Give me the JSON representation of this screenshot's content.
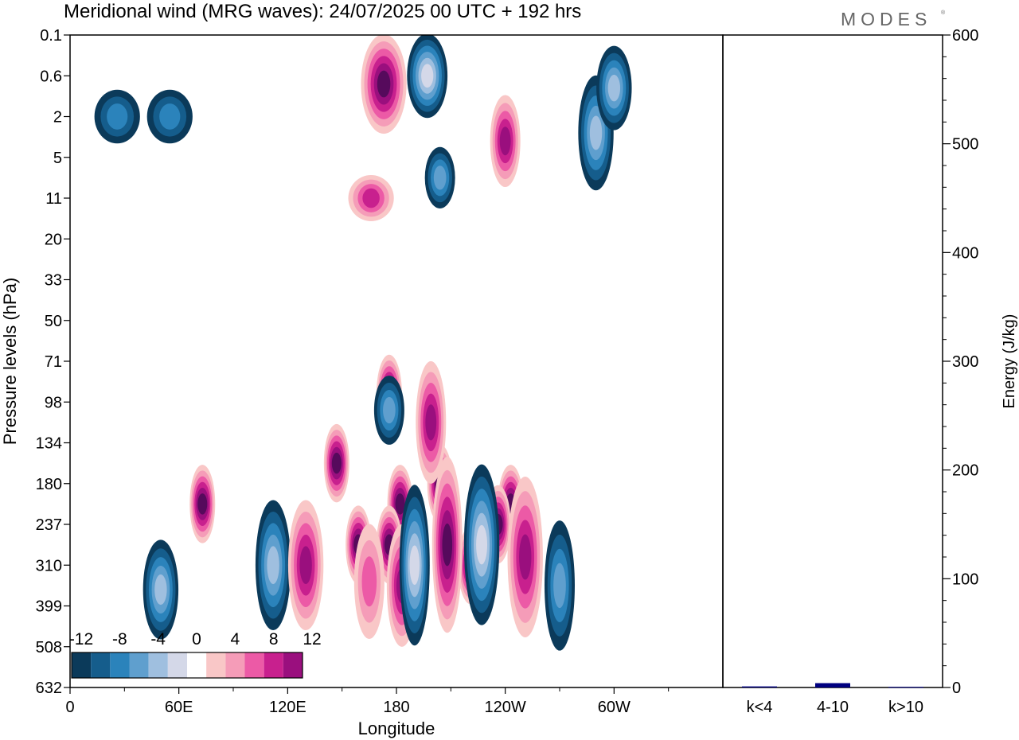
{
  "title": "Meridional wind (MRG waves):  24/07/2025  00 UTC  + 192 hrs",
  "logo": "MODES",
  "colors": {
    "neg": [
      "#0b3a5a",
      "#155d8c",
      "#2b83bb",
      "#5f9fce",
      "#9fbfdf",
      "#d4d8e8"
    ],
    "pos": [
      "#f9c7c7",
      "#f59cb8",
      "#ec5aa6",
      "#c8208e",
      "#9a0f7e",
      "#560a5c"
    ],
    "bar": "#000080",
    "frame": "#000000"
  },
  "chart_data": [
    {
      "type": "heatmap",
      "name": "meridional-wind-contours",
      "xlabel": "Longitude",
      "ylabel": "Pressure levels (hPa)",
      "x_ticks": [
        "0",
        "60E",
        "120E",
        "180",
        "120W",
        "60W"
      ],
      "y_ticks": [
        "0.1",
        "0.6",
        "2",
        "5",
        "11",
        "20",
        "33",
        "50",
        "71",
        "98",
        "134",
        "180",
        "237",
        "310",
        "399",
        "508",
        "632"
      ],
      "colorbar": {
        "labels": [
          "-12",
          "-8",
          "-4",
          "0",
          "4",
          "8",
          "12"
        ],
        "levels": [
          -12,
          -10,
          -8,
          -6,
          -4,
          -2,
          0,
          2,
          4,
          6,
          8,
          10,
          12
        ]
      },
      "features": [
        {
          "lon": 147,
          "lev": 10.5,
          "value": 13,
          "sx": 5,
          "sy": 1.8
        },
        {
          "lon": 159,
          "lev": 12.5,
          "value": 13,
          "sx": 5,
          "sy": 1.8
        },
        {
          "lon": 204,
          "lev": 11.0,
          "value": 13,
          "sx": 5,
          "sy": 1.8
        },
        {
          "lon": 243,
          "lev": 11.5,
          "value": 13,
          "sx": 5,
          "sy": 1.8
        },
        {
          "lon": 73,
          "lev": 11.5,
          "value": 13,
          "sx": 5,
          "sy": 1.8
        },
        {
          "lon": 176,
          "lev": 8.8,
          "value": 13,
          "sx": 5,
          "sy": 1.8
        },
        {
          "lon": 182,
          "lev": 11.5,
          "value": 13,
          "sx": 5,
          "sy": 1.8
        },
        {
          "lon": 236,
          "lev": 12.0,
          "value": 13,
          "sx": 5,
          "sy": 1.8
        },
        {
          "lon": 229,
          "lev": 12.2,
          "value": 13,
          "sx": 5,
          "sy": 1.8
        },
        {
          "lon": 176,
          "lev": 12.5,
          "value": 13,
          "sx": 5,
          "sy": 1.8
        },
        {
          "lon": 186,
          "lev": 13.0,
          "value": 13,
          "sx": 5,
          "sy": 1.8
        },
        {
          "lon": 221,
          "lev": 13.0,
          "value": 13,
          "sx": 5,
          "sy": 1.8
        }
      ]
    },
    {
      "type": "bar",
      "name": "energy-bars",
      "categories": [
        "k<4",
        "4-10",
        "k>10"
      ],
      "values": [
        1,
        4,
        0.5
      ],
      "ylabel": "Energy (J/kg)",
      "ylim": [
        0,
        600
      ],
      "y_ticks": [
        "0",
        "100",
        "200",
        "300",
        "400",
        "500",
        "600"
      ]
    }
  ]
}
